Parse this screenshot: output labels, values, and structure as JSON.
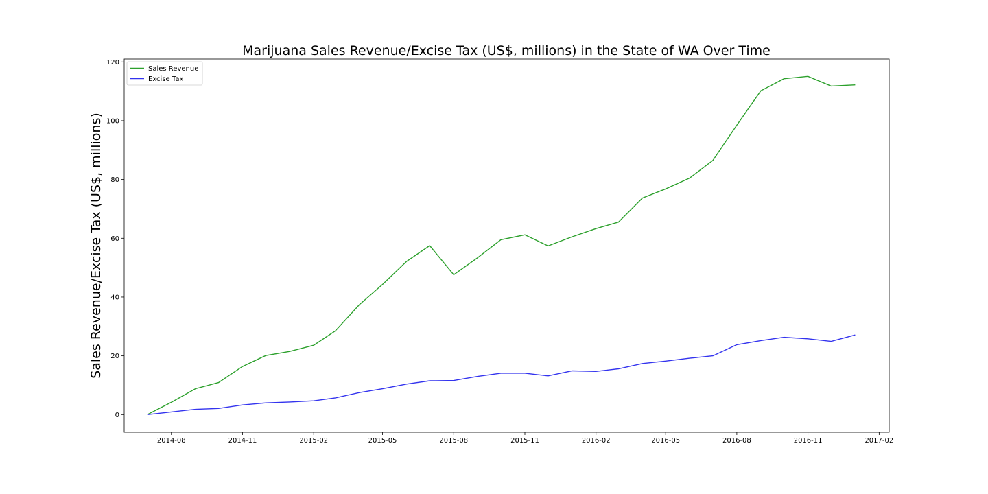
{
  "chart_data": {
    "type": "line",
    "title": "Marijuana Sales Revenue/Excise Tax (US$, millions) in the State of WA Over Time",
    "xlabel": "",
    "ylabel": "Sales Revenue/Excise Tax (US$, millions)",
    "x": [
      "2014-07",
      "2014-08",
      "2014-09",
      "2014-10",
      "2014-11",
      "2014-12",
      "2015-01",
      "2015-02",
      "2015-03",
      "2015-04",
      "2015-05",
      "2015-06",
      "2015-07",
      "2015-08",
      "2015-09",
      "2015-10",
      "2015-11",
      "2015-12",
      "2016-01",
      "2016-02",
      "2016-03",
      "2016-04",
      "2016-05",
      "2016-06",
      "2016-07",
      "2016-08",
      "2016-09",
      "2016-10",
      "2016-11",
      "2016-12",
      "2017-01"
    ],
    "xlim": [
      "2014-06-01",
      "2017-02-14"
    ],
    "ylim": [
      -6,
      121
    ],
    "x_ticks": [
      "2014-08",
      "2014-11",
      "2015-02",
      "2015-05",
      "2015-08",
      "2015-11",
      "2016-02",
      "2016-05",
      "2016-08",
      "2016-11",
      "2017-02"
    ],
    "y_ticks": [
      0,
      20,
      40,
      60,
      80,
      100,
      120
    ],
    "grid": false,
    "legend": "upper left",
    "series": [
      {
        "name": "Sales Revenue",
        "color": "#2ca02c",
        "values": [
          0.0,
          4.2,
          8.8,
          10.9,
          16.4,
          20.1,
          21.5,
          23.6,
          28.5,
          37.4,
          44.3,
          52.1,
          57.5,
          47.6,
          53.4,
          59.5,
          61.2,
          57.4,
          60.5,
          63.3,
          65.5,
          73.7,
          76.8,
          80.5,
          86.5,
          98.5,
          110.2,
          114.3,
          115.1,
          111.8,
          112.2
        ]
      },
      {
        "name": "Excise Tax",
        "color": "#3333ee",
        "values": [
          0.0,
          0.9,
          1.8,
          2.1,
          3.3,
          4.0,
          4.3,
          4.7,
          5.7,
          7.5,
          8.8,
          10.4,
          11.5,
          11.6,
          13.0,
          14.1,
          14.1,
          13.2,
          14.9,
          14.7,
          15.6,
          17.4,
          18.2,
          19.2,
          20.0,
          23.8,
          25.2,
          26.3,
          25.8,
          24.9,
          27.1
        ]
      }
    ]
  }
}
